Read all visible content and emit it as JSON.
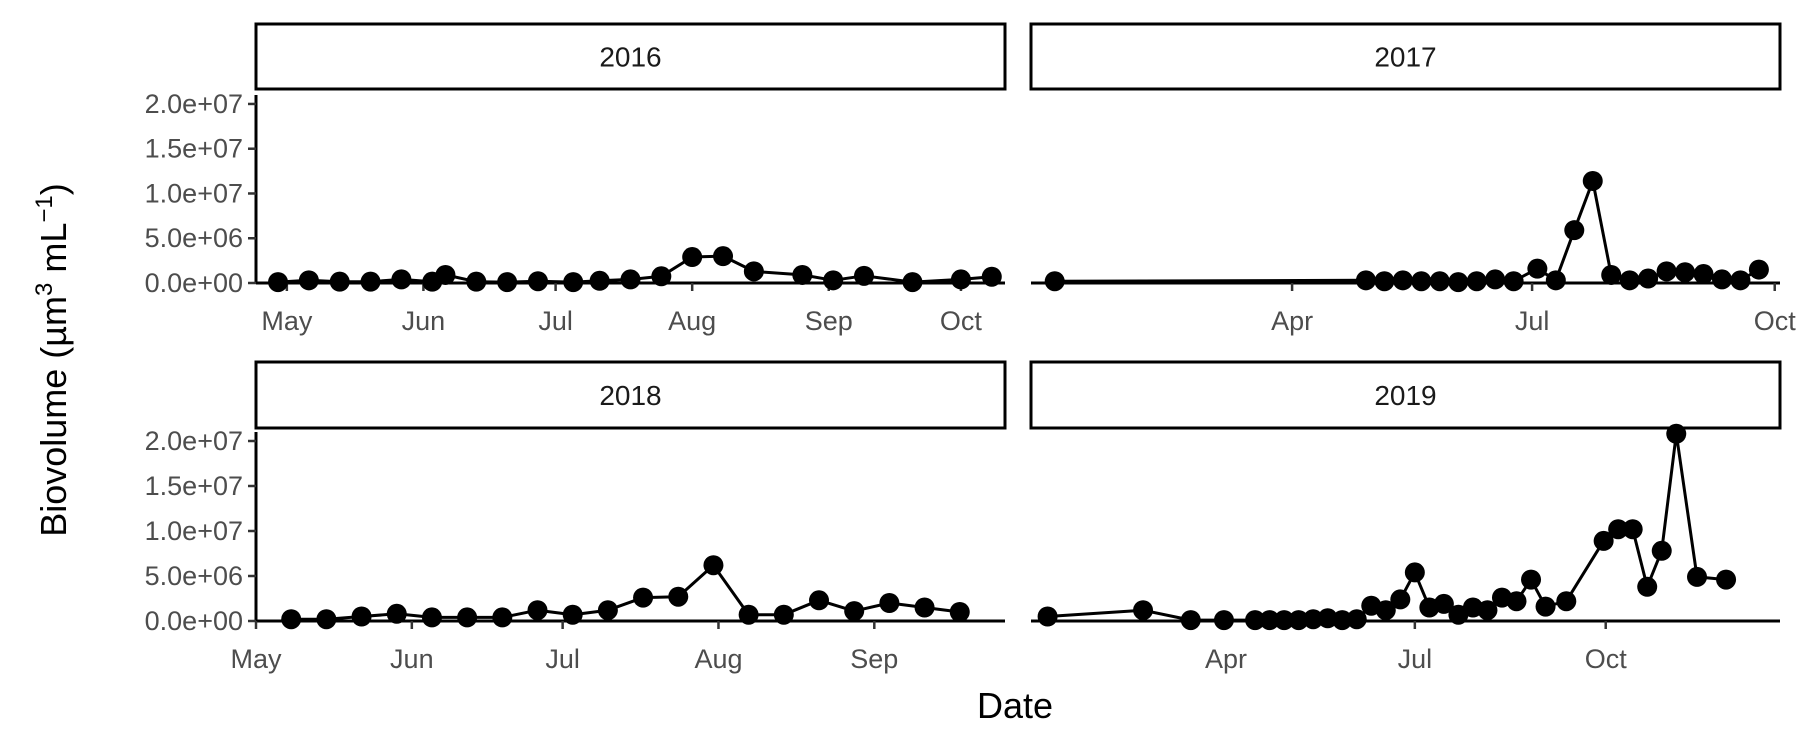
{
  "chart_data": {
    "type": "line",
    "layout": "facet-wrap 2x2, shared y axis",
    "xlabel": "Date",
    "ylabel": {
      "main": "Biovolume (µm",
      "sup1": "3",
      "mid": " mL",
      "sup2": "−1",
      "end": ")"
    },
    "ylim": [
      0,
      21000000
    ],
    "y_ticks": [
      0,
      5000000,
      10000000,
      15000000,
      20000000
    ],
    "y_tick_labels": [
      "0.0e+00",
      "5.0e+06",
      "1.0e+07",
      "1.5e+07",
      "2.0e+07"
    ],
    "grid": false,
    "legend": "none",
    "colors": {
      "line": "#000000",
      "point": "#000000",
      "strip_fill": "#ffffff",
      "strip_border": "#000000"
    },
    "panels": [
      {
        "title": "2016",
        "xlim": [
          "2016-04-24",
          "2016-10-11"
        ],
        "x_ticks": [
          "2016-05-01",
          "2016-06-01",
          "2016-07-01",
          "2016-08-01",
          "2016-09-01",
          "2016-10-01"
        ],
        "x_tick_labels": [
          "May",
          "Jun",
          "Jul",
          "Aug",
          "Sep",
          "Oct"
        ],
        "points": [
          {
            "x": "2016-04-29",
            "y": 100000
          },
          {
            "x": "2016-05-06",
            "y": 300000
          },
          {
            "x": "2016-05-13",
            "y": 150000
          },
          {
            "x": "2016-05-20",
            "y": 150000
          },
          {
            "x": "2016-05-27",
            "y": 400000
          },
          {
            "x": "2016-06-03",
            "y": 150000
          },
          {
            "x": "2016-06-06",
            "y": 900000
          },
          {
            "x": "2016-06-13",
            "y": 150000
          },
          {
            "x": "2016-06-20",
            "y": 100000
          },
          {
            "x": "2016-06-27",
            "y": 200000
          },
          {
            "x": "2016-07-05",
            "y": 100000
          },
          {
            "x": "2016-07-11",
            "y": 250000
          },
          {
            "x": "2016-07-18",
            "y": 400000
          },
          {
            "x": "2016-07-25",
            "y": 750000
          },
          {
            "x": "2016-08-01",
            "y": 2900000
          },
          {
            "x": "2016-08-08",
            "y": 3000000
          },
          {
            "x": "2016-08-15",
            "y": 1300000
          },
          {
            "x": "2016-08-26",
            "y": 900000
          },
          {
            "x": "2016-09-02",
            "y": 300000
          },
          {
            "x": "2016-09-09",
            "y": 800000
          },
          {
            "x": "2016-09-20",
            "y": 100000
          },
          {
            "x": "2016-10-01",
            "y": 400000
          },
          {
            "x": "2016-10-08",
            "y": 700000
          }
        ]
      },
      {
        "title": "2017",
        "xlim": [
          "2016-12-23",
          "2017-10-03"
        ],
        "x_ticks": [
          "2017-04-01",
          "2017-07-01",
          "2017-10-01"
        ],
        "x_tick_labels": [
          "Apr",
          "Jul",
          "Oct"
        ],
        "points": [
          {
            "x": "2017-01-01",
            "y": 200000
          },
          {
            "x": "2017-04-29",
            "y": 300000
          },
          {
            "x": "2017-05-06",
            "y": 200000
          },
          {
            "x": "2017-05-13",
            "y": 300000
          },
          {
            "x": "2017-05-20",
            "y": 200000
          },
          {
            "x": "2017-05-27",
            "y": 200000
          },
          {
            "x": "2017-06-03",
            "y": 100000
          },
          {
            "x": "2017-06-10",
            "y": 200000
          },
          {
            "x": "2017-06-17",
            "y": 400000
          },
          {
            "x": "2017-06-24",
            "y": 200000
          },
          {
            "x": "2017-07-03",
            "y": 1600000
          },
          {
            "x": "2017-07-10",
            "y": 300000
          },
          {
            "x": "2017-07-17",
            "y": 5900000
          },
          {
            "x": "2017-07-24",
            "y": 11400000
          },
          {
            "x": "2017-07-31",
            "y": 900000
          },
          {
            "x": "2017-08-07",
            "y": 300000
          },
          {
            "x": "2017-08-14",
            "y": 500000
          },
          {
            "x": "2017-08-21",
            "y": 1300000
          },
          {
            "x": "2017-08-28",
            "y": 1200000
          },
          {
            "x": "2017-09-04",
            "y": 1000000
          },
          {
            "x": "2017-09-11",
            "y": 400000
          },
          {
            "x": "2017-09-18",
            "y": 300000
          },
          {
            "x": "2017-09-25",
            "y": 1500000
          }
        ]
      },
      {
        "title": "2018",
        "xlim": [
          "2018-05-01",
          "2018-09-27"
        ],
        "x_ticks": [
          "2018-05-01",
          "2018-06-01",
          "2018-07-01",
          "2018-08-01",
          "2018-09-01"
        ],
        "x_tick_labels": [
          "May",
          "Jun",
          "Jul",
          "Aug",
          "Sep"
        ],
        "points": [
          {
            "x": "2018-05-08",
            "y": 200000
          },
          {
            "x": "2018-05-15",
            "y": 200000
          },
          {
            "x": "2018-05-22",
            "y": 500000
          },
          {
            "x": "2018-05-29",
            "y": 800000
          },
          {
            "x": "2018-06-05",
            "y": 400000
          },
          {
            "x": "2018-06-12",
            "y": 400000
          },
          {
            "x": "2018-06-19",
            "y": 400000
          },
          {
            "x": "2018-06-26",
            "y": 1200000
          },
          {
            "x": "2018-07-03",
            "y": 700000
          },
          {
            "x": "2018-07-10",
            "y": 1200000
          },
          {
            "x": "2018-07-17",
            "y": 2600000
          },
          {
            "x": "2018-07-24",
            "y": 2700000
          },
          {
            "x": "2018-07-31",
            "y": 6200000
          },
          {
            "x": "2018-08-07",
            "y": 700000
          },
          {
            "x": "2018-08-14",
            "y": 700000
          },
          {
            "x": "2018-08-21",
            "y": 2300000
          },
          {
            "x": "2018-08-28",
            "y": 1100000
          },
          {
            "x": "2018-09-04",
            "y": 2000000
          },
          {
            "x": "2018-09-11",
            "y": 1500000
          },
          {
            "x": "2018-09-18",
            "y": 1000000
          }
        ]
      },
      {
        "title": "2019",
        "xlim": [
          "2018-12-28",
          "2019-12-24"
        ],
        "x_ticks": [
          "2019-04-01",
          "2019-07-01",
          "2019-10-01"
        ],
        "x_tick_labels": [
          "Apr",
          "Jul",
          "Oct"
        ],
        "points": [
          {
            "x": "2019-01-05",
            "y": 500000
          },
          {
            "x": "2019-02-20",
            "y": 1200000
          },
          {
            "x": "2019-03-15",
            "y": 100000
          },
          {
            "x": "2019-03-31",
            "y": 100000
          },
          {
            "x": "2019-04-15",
            "y": 100000
          },
          {
            "x": "2019-04-22",
            "y": 100000
          },
          {
            "x": "2019-04-29",
            "y": 100000
          },
          {
            "x": "2019-05-06",
            "y": 100000
          },
          {
            "x": "2019-05-13",
            "y": 200000
          },
          {
            "x": "2019-05-20",
            "y": 300000
          },
          {
            "x": "2019-05-27",
            "y": 100000
          },
          {
            "x": "2019-06-03",
            "y": 200000
          },
          {
            "x": "2019-06-10",
            "y": 1700000
          },
          {
            "x": "2019-06-17",
            "y": 1200000
          },
          {
            "x": "2019-06-24",
            "y": 2400000
          },
          {
            "x": "2019-07-01",
            "y": 5400000
          },
          {
            "x": "2019-07-08",
            "y": 1500000
          },
          {
            "x": "2019-07-15",
            "y": 1900000
          },
          {
            "x": "2019-07-22",
            "y": 700000
          },
          {
            "x": "2019-07-29",
            "y": 1500000
          },
          {
            "x": "2019-08-05",
            "y": 1200000
          },
          {
            "x": "2019-08-12",
            "y": 2600000
          },
          {
            "x": "2019-08-19",
            "y": 2200000
          },
          {
            "x": "2019-08-26",
            "y": 4600000
          },
          {
            "x": "2019-09-02",
            "y": 1600000
          },
          {
            "x": "2019-09-12",
            "y": 2200000
          },
          {
            "x": "2019-09-30",
            "y": 8900000
          },
          {
            "x": "2019-10-07",
            "y": 10200000
          },
          {
            "x": "2019-10-14",
            "y": 10200000
          },
          {
            "x": "2019-10-21",
            "y": 3800000
          },
          {
            "x": "2019-10-28",
            "y": 7800000
          },
          {
            "x": "2019-11-04",
            "y": 20800000
          },
          {
            "x": "2019-11-14",
            "y": 4900000
          },
          {
            "x": "2019-11-28",
            "y": 4600000
          }
        ]
      }
    ]
  }
}
